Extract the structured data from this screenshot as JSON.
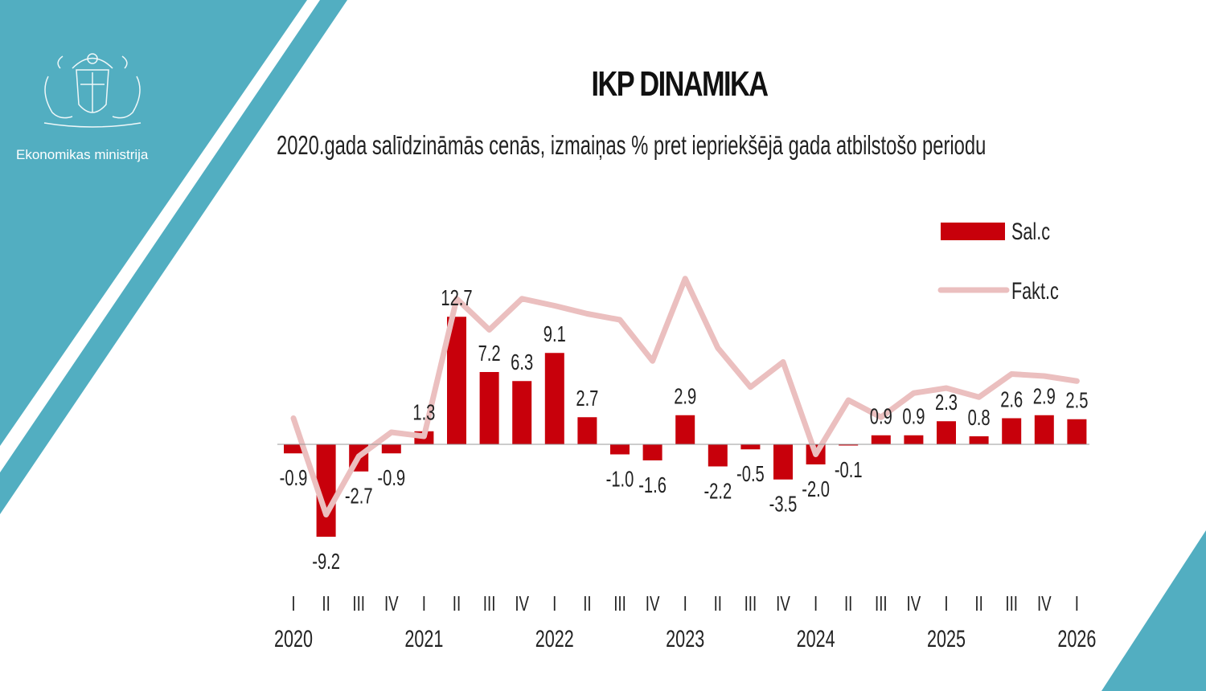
{
  "header": {
    "ministry": "Ekonomikas ministrija",
    "title": "IKP DINAMIKA",
    "subtitle": "2020.gada salīdzināmās cenās, izmaiņas % pret iepriekšējā gada atbilstošo periodu"
  },
  "colors": {
    "teal": "#52aec1",
    "bar": "#c8000b",
    "line": "#ebbfbf"
  },
  "chart_data": {
    "type": "bar",
    "title": "IKP DINAMIKA",
    "subtitle": "2020.gada salīdzināmās cenās, izmaiņas % pret iepriekšējā gada atbilstošo periodu",
    "quarters": [
      "I",
      "II",
      "III",
      "IV",
      "I",
      "II",
      "III",
      "IV",
      "I",
      "II",
      "III",
      "IV",
      "I",
      "II",
      "III",
      "IV",
      "I",
      "II",
      "III",
      "IV",
      "I",
      "II",
      "III",
      "IV",
      "I"
    ],
    "years": [
      {
        "label": "2020",
        "index": 0
      },
      {
        "label": "2021",
        "index": 4
      },
      {
        "label": "2022",
        "index": 8
      },
      {
        "label": "2023",
        "index": 12
      },
      {
        "label": "2024",
        "index": 16
      },
      {
        "label": "2025",
        "index": 20
      },
      {
        "label": "2026",
        "index": 24
      }
    ],
    "series": [
      {
        "name": "Sal.c",
        "type": "bar",
        "values": [
          -0.9,
          -9.2,
          -2.7,
          -0.9,
          1.3,
          12.7,
          7.2,
          6.3,
          9.1,
          2.7,
          -1.0,
          -1.6,
          2.9,
          -2.2,
          -0.5,
          -3.5,
          -2.0,
          -0.1,
          0.9,
          0.9,
          2.3,
          0.8,
          2.6,
          2.9,
          2.5
        ],
        "labels": [
          "-0.9",
          "-9.2",
          "-2.7",
          "-0.9",
          "1.3",
          "12.7",
          "7.2",
          "6.3",
          "9.1",
          "2.7",
          "-1.0",
          "-1.6",
          "2.9",
          "-2.2",
          "-0.5",
          "-3.5",
          "-2.0",
          "-0.1",
          "0.9",
          "0.9",
          "2.3",
          "0.8",
          "2.6",
          "2.9",
          "2.5"
        ]
      },
      {
        "name": "Fakt.c",
        "type": "line",
        "values": [
          2.6,
          -7.0,
          -1.2,
          1.2,
          0.8,
          14.5,
          11.4,
          14.5,
          13.8,
          13.0,
          12.4,
          8.3,
          16.5,
          9.6,
          5.7,
          8.2,
          -1.0,
          4.4,
          2.7,
          5.1,
          5.6,
          4.7,
          7.0,
          6.8,
          6.3
        ]
      }
    ],
    "ylim": [
      -10,
      14
    ],
    "legend": "right"
  }
}
